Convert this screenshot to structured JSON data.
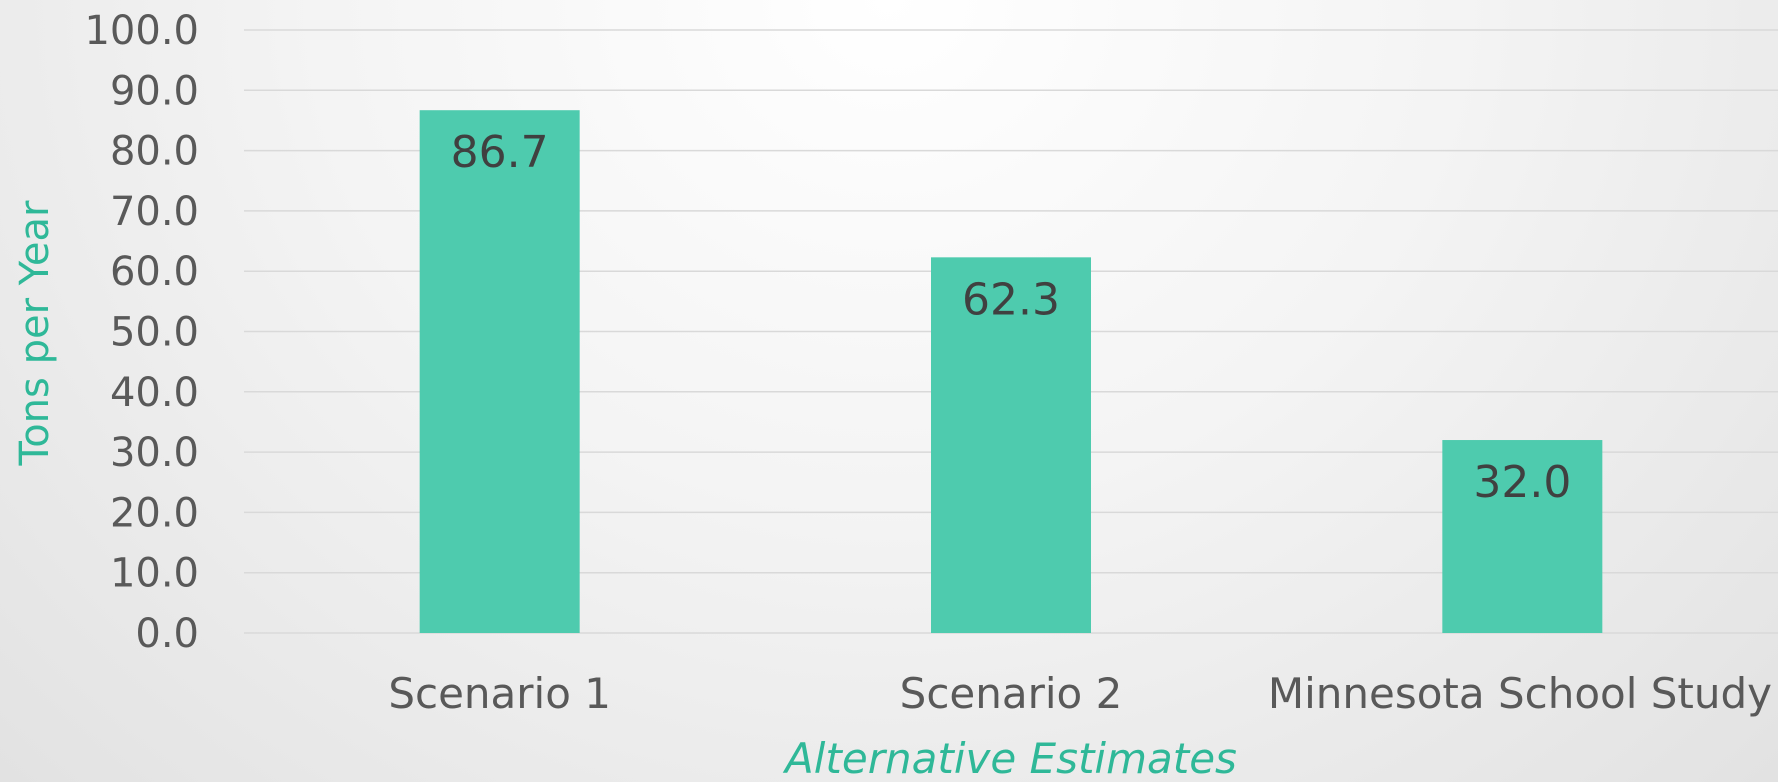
{
  "chart_data": {
    "type": "bar",
    "categories": [
      "Scenario 1",
      "Scenario 2",
      "Minnesota School Study"
    ],
    "values": [
      86.7,
      62.3,
      32.0
    ],
    "data_labels": [
      "86.7",
      "62.3",
      "32.0"
    ],
    "title": "",
    "xlabel": "Alternative Estimates",
    "ylabel": "Tons per Year",
    "ylim": [
      0,
      100
    ],
    "yticks": [
      "0.0",
      "10.0",
      "20.0",
      "30.0",
      "40.0",
      "50.0",
      "60.0",
      "70.0",
      "80.0",
      "90.0",
      "100.0"
    ],
    "grid": true,
    "legend": "none",
    "colors": {
      "bar": "#4ecbae",
      "axis_title": "#2fb898",
      "tick_text": "#595959",
      "data_label": "#404040",
      "gridline": "#d9d9d9"
    }
  }
}
